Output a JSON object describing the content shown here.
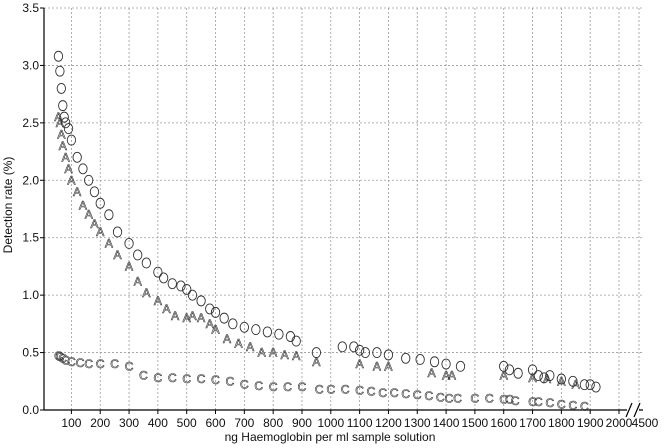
{
  "chart_data": {
    "type": "scatter",
    "title": "",
    "xlabel": "ng Haemoglobin per ml sample solution",
    "ylabel": "Detection rate (%)",
    "xlim": [
      50,
      2150
    ],
    "ylim": [
      0,
      3.5
    ],
    "x_ticks": [
      100,
      200,
      300,
      400,
      500,
      600,
      700,
      800,
      900,
      1000,
      1100,
      1200,
      1300,
      1400,
      1500,
      1600,
      1700,
      1800,
      1900,
      2000
    ],
    "x_break_label": "4500",
    "y_ticks": [
      0.0,
      0.5,
      1.0,
      1.5,
      2.0,
      2.5,
      3.0,
      3.5
    ],
    "y_tick_labels": [
      "0.0",
      "0.5",
      "1.0",
      "1.5",
      "2.0",
      "2.5",
      "3.0",
      "3.5"
    ],
    "grid": true,
    "series": [
      {
        "marker": "O",
        "x": [
          55,
          60,
          65,
          70,
          75,
          80,
          90,
          100,
          120,
          140,
          160,
          180,
          200,
          230,
          260,
          300,
          330,
          360,
          400,
          420,
          450,
          480,
          500,
          520,
          550,
          580,
          600,
          630,
          660,
          700,
          740,
          780,
          820,
          860,
          880,
          950,
          1040,
          1080,
          1100,
          1120,
          1160,
          1200,
          1260,
          1310,
          1360,
          1400,
          1450,
          1600,
          1620,
          1650,
          1700,
          1720,
          1740,
          1760,
          1800,
          1840,
          1880,
          1900,
          1920
        ],
        "y": [
          3.08,
          2.95,
          2.8,
          2.65,
          2.55,
          2.5,
          2.45,
          2.35,
          2.2,
          2.1,
          2.0,
          1.9,
          1.8,
          1.7,
          1.55,
          1.45,
          1.35,
          1.28,
          1.2,
          1.15,
          1.1,
          1.08,
          1.05,
          1.0,
          0.95,
          0.88,
          0.85,
          0.8,
          0.75,
          0.72,
          0.7,
          0.68,
          0.66,
          0.64,
          0.6,
          0.5,
          0.55,
          0.55,
          0.52,
          0.5,
          0.5,
          0.48,
          0.45,
          0.44,
          0.42,
          0.4,
          0.38,
          0.38,
          0.35,
          0.32,
          0.35,
          0.3,
          0.28,
          0.3,
          0.27,
          0.25,
          0.22,
          0.22,
          0.2
        ]
      },
      {
        "marker": "A",
        "x": [
          55,
          60,
          65,
          70,
          80,
          90,
          100,
          120,
          140,
          160,
          180,
          200,
          230,
          260,
          300,
          330,
          360,
          400,
          430,
          460,
          500,
          520,
          550,
          580,
          600,
          640,
          680,
          720,
          760,
          800,
          840,
          880,
          950,
          1100,
          1160,
          1200,
          1350,
          1400,
          1420,
          1600,
          1700,
          1750,
          1800,
          1850
        ],
        "y": [
          2.55,
          2.5,
          2.4,
          2.3,
          2.2,
          2.1,
          2.0,
          1.9,
          1.78,
          1.7,
          1.62,
          1.55,
          1.45,
          1.35,
          1.25,
          1.12,
          1.02,
          0.95,
          0.88,
          0.82,
          0.8,
          0.82,
          0.8,
          0.75,
          0.7,
          0.62,
          0.58,
          0.55,
          0.5,
          0.5,
          0.48,
          0.47,
          0.42,
          0.4,
          0.38,
          0.38,
          0.32,
          0.3,
          0.3,
          0.3,
          0.28,
          0.27,
          0.25,
          0.22
        ]
      },
      {
        "marker": "C",
        "x": [
          55,
          60,
          70,
          80,
          100,
          130,
          160,
          200,
          250,
          300,
          350,
          400,
          450,
          500,
          550,
          600,
          650,
          700,
          750,
          800,
          850,
          900,
          960,
          1000,
          1050,
          1100,
          1140,
          1180,
          1220,
          1260,
          1300,
          1340,
          1380,
          1410,
          1440,
          1500,
          1550,
          1600,
          1620,
          1640,
          1700,
          1720,
          1760,
          1800,
          1840,
          1880
        ],
        "y": [
          0.47,
          0.46,
          0.45,
          0.43,
          0.42,
          0.41,
          0.4,
          0.4,
          0.4,
          0.38,
          0.3,
          0.28,
          0.28,
          0.27,
          0.27,
          0.26,
          0.25,
          0.22,
          0.21,
          0.2,
          0.2,
          0.2,
          0.18,
          0.18,
          0.18,
          0.17,
          0.16,
          0.15,
          0.15,
          0.14,
          0.13,
          0.12,
          0.11,
          0.1,
          0.1,
          0.1,
          0.1,
          0.09,
          0.09,
          0.08,
          0.07,
          0.07,
          0.06,
          0.05,
          0.04,
          0.03
        ]
      }
    ]
  }
}
